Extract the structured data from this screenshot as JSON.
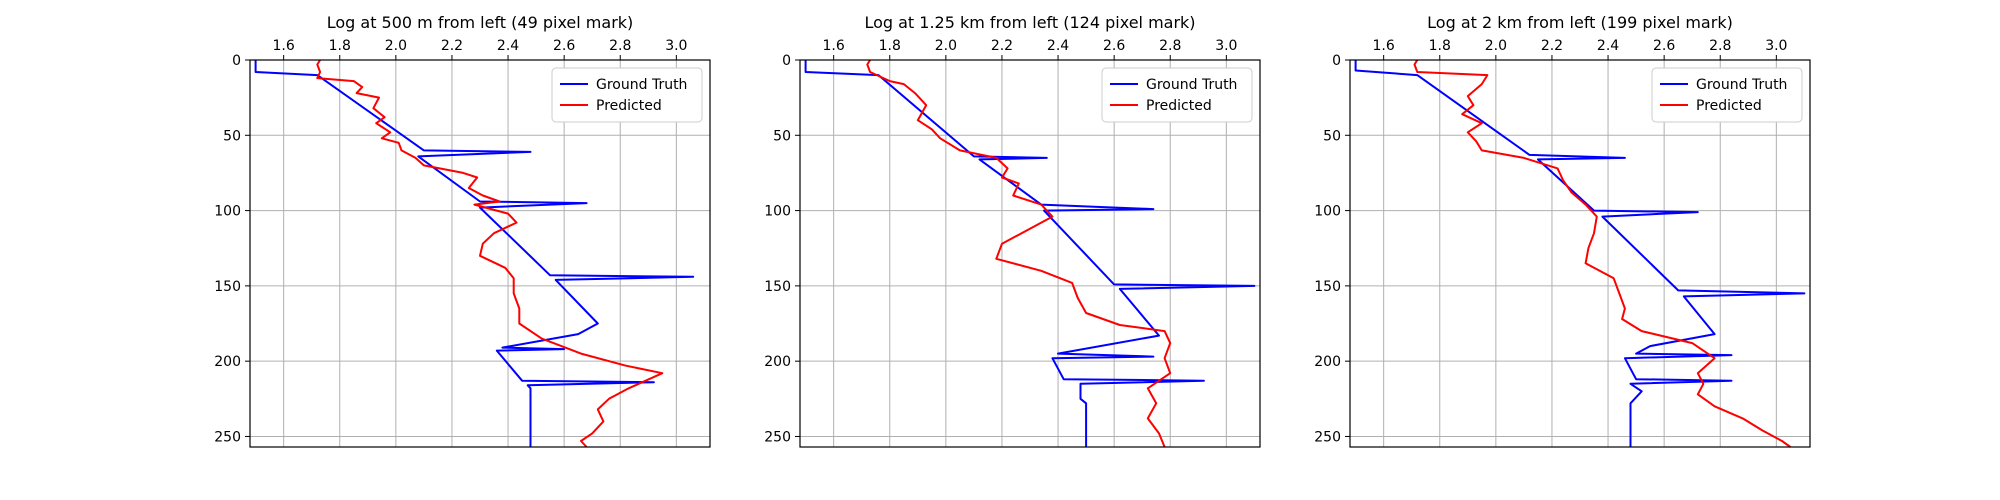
{
  "colors": {
    "ground_truth": "#0000ff",
    "predicted": "#ff0000",
    "grid": "#b0b0b0"
  },
  "chart_data": [
    {
      "type": "line",
      "title": "Log at 500 m from left (49 pixel mark)",
      "xlim": [
        1.48,
        3.12
      ],
      "ylim": [
        257,
        0
      ],
      "y_inverted": true,
      "x_axis_position": "top",
      "xticks": [
        1.6,
        1.8,
        2.0,
        2.2,
        2.4,
        2.6,
        2.8,
        3.0
      ],
      "yticks": [
        0,
        50,
        100,
        150,
        200,
        250
      ],
      "grid": true,
      "legend": "top-right",
      "series": [
        {
          "name": "Ground Truth",
          "color": "#0000ff",
          "points": [
            [
              1.5,
              0
            ],
            [
              1.5,
              8
            ],
            [
              1.72,
              10
            ],
            [
              2.1,
              60
            ],
            [
              2.48,
              61
            ],
            [
              2.08,
              64
            ],
            [
              2.3,
              94
            ],
            [
              2.68,
              95
            ],
            [
              2.3,
              98
            ],
            [
              2.55,
              143
            ],
            [
              3.06,
              144
            ],
            [
              2.57,
              146
            ],
            [
              2.72,
              175
            ],
            [
              2.65,
              182
            ],
            [
              2.38,
              191
            ],
            [
              2.6,
              192
            ],
            [
              2.36,
              193
            ],
            [
              2.45,
              213
            ],
            [
              2.92,
              214
            ],
            [
              2.47,
              216
            ],
            [
              2.48,
              218
            ],
            [
              2.48,
              257
            ]
          ]
        },
        {
          "name": "Predicted",
          "color": "#ff0000",
          "points": [
            [
              1.73,
              0
            ],
            [
              1.72,
              3
            ],
            [
              1.73,
              8
            ],
            [
              1.72,
              12
            ],
            [
              1.85,
              14
            ],
            [
              1.88,
              18
            ],
            [
              1.86,
              22
            ],
            [
              1.94,
              25
            ],
            [
              1.92,
              32
            ],
            [
              1.96,
              38
            ],
            [
              1.93,
              42
            ],
            [
              1.98,
              48
            ],
            [
              1.95,
              52
            ],
            [
              2.01,
              55
            ],
            [
              2.02,
              60
            ],
            [
              2.07,
              65
            ],
            [
              2.1,
              70
            ],
            [
              2.24,
              75
            ],
            [
              2.29,
              78
            ],
            [
              2.26,
              85
            ],
            [
              2.31,
              90
            ],
            [
              2.37,
              94
            ],
            [
              2.28,
              96
            ],
            [
              2.4,
              102
            ],
            [
              2.43,
              108
            ],
            [
              2.35,
              115
            ],
            [
              2.31,
              122
            ],
            [
              2.3,
              130
            ],
            [
              2.39,
              138
            ],
            [
              2.42,
              145
            ],
            [
              2.42,
              155
            ],
            [
              2.44,
              165
            ],
            [
              2.44,
              175
            ],
            [
              2.52,
              185
            ],
            [
              2.66,
              195
            ],
            [
              2.82,
              203
            ],
            [
              2.95,
              208
            ],
            [
              2.83,
              218
            ],
            [
              2.76,
              225
            ],
            [
              2.72,
              232
            ],
            [
              2.74,
              240
            ],
            [
              2.7,
              248
            ],
            [
              2.66,
              253
            ],
            [
              2.68,
              257
            ]
          ]
        }
      ]
    },
    {
      "type": "line",
      "title": "Log at 1.25 km from left (124 pixel mark)",
      "xlim": [
        1.48,
        3.12
      ],
      "ylim": [
        257,
        0
      ],
      "y_inverted": true,
      "x_axis_position": "top",
      "xticks": [
        1.6,
        1.8,
        2.0,
        2.2,
        2.4,
        2.6,
        2.8,
        3.0
      ],
      "yticks": [
        0,
        50,
        100,
        150,
        200,
        250
      ],
      "grid": true,
      "legend": "top-right",
      "series": [
        {
          "name": "Ground Truth",
          "color": "#0000ff",
          "points": [
            [
              1.5,
              0
            ],
            [
              1.5,
              8
            ],
            [
              1.76,
              10
            ],
            [
              2.1,
              64
            ],
            [
              2.36,
              65
            ],
            [
              2.12,
              66
            ],
            [
              2.34,
              96
            ],
            [
              2.74,
              99
            ],
            [
              2.35,
              100
            ],
            [
              2.6,
              149
            ],
            [
              3.1,
              150
            ],
            [
              2.62,
              152
            ],
            [
              2.76,
              183
            ],
            [
              2.4,
              195
            ],
            [
              2.74,
              197
            ],
            [
              2.38,
              198
            ],
            [
              2.42,
              212
            ],
            [
              2.92,
              213
            ],
            [
              2.48,
              215
            ],
            [
              2.48,
              225
            ],
            [
              2.5,
              228
            ],
            [
              2.5,
              257
            ]
          ]
        },
        {
          "name": "Predicted",
          "color": "#ff0000",
          "points": [
            [
              1.73,
              0
            ],
            [
              1.72,
              3
            ],
            [
              1.73,
              8
            ],
            [
              1.8,
              14
            ],
            [
              1.85,
              16
            ],
            [
              1.89,
              22
            ],
            [
              1.93,
              30
            ],
            [
              1.9,
              40
            ],
            [
              1.95,
              46
            ],
            [
              1.98,
              52
            ],
            [
              2.05,
              60
            ],
            [
              2.18,
              65
            ],
            [
              2.22,
              72
            ],
            [
              2.2,
              78
            ],
            [
              2.26,
              82
            ],
            [
              2.24,
              90
            ],
            [
              2.34,
              96
            ],
            [
              2.38,
              104
            ],
            [
              2.27,
              115
            ],
            [
              2.2,
              122
            ],
            [
              2.18,
              132
            ],
            [
              2.34,
              140
            ],
            [
              2.45,
              148
            ],
            [
              2.47,
              158
            ],
            [
              2.5,
              168
            ],
            [
              2.62,
              176
            ],
            [
              2.78,
              180
            ],
            [
              2.8,
              188
            ],
            [
              2.78,
              198
            ],
            [
              2.8,
              208
            ],
            [
              2.72,
              218
            ],
            [
              2.75,
              228
            ],
            [
              2.72,
              238
            ],
            [
              2.76,
              248
            ],
            [
              2.78,
              257
            ]
          ]
        }
      ]
    },
    {
      "type": "line",
      "title": "Log at 2 km from left (199 pixel mark)",
      "xlim": [
        1.48,
        3.12
      ],
      "ylim": [
        257,
        0
      ],
      "y_inverted": true,
      "x_axis_position": "top",
      "xticks": [
        1.6,
        1.8,
        2.0,
        2.2,
        2.4,
        2.6,
        2.8,
        3.0
      ],
      "yticks": [
        0,
        50,
        100,
        150,
        200,
        250
      ],
      "grid": true,
      "legend": "top-right",
      "series": [
        {
          "name": "Ground Truth",
          "color": "#0000ff",
          "points": [
            [
              1.5,
              0
            ],
            [
              1.5,
              7
            ],
            [
              1.72,
              10
            ],
            [
              2.12,
              63
            ],
            [
              2.46,
              65
            ],
            [
              2.15,
              66
            ],
            [
              2.35,
              100
            ],
            [
              2.72,
              101
            ],
            [
              2.38,
              104
            ],
            [
              2.65,
              153
            ],
            [
              3.1,
              155
            ],
            [
              2.67,
              157
            ],
            [
              2.78,
              182
            ],
            [
              2.55,
              190
            ],
            [
              2.5,
              195
            ],
            [
              2.84,
              196
            ],
            [
              2.46,
              198
            ],
            [
              2.5,
              212
            ],
            [
              2.84,
              213
            ],
            [
              2.48,
              215
            ],
            [
              2.52,
              220
            ],
            [
              2.48,
              228
            ],
            [
              2.48,
              257
            ]
          ]
        },
        {
          "name": "Predicted",
          "color": "#ff0000",
          "points": [
            [
              1.72,
              0
            ],
            [
              1.71,
              3
            ],
            [
              1.72,
              8
            ],
            [
              1.97,
              10
            ],
            [
              1.95,
              16
            ],
            [
              1.9,
              24
            ],
            [
              1.92,
              30
            ],
            [
              1.88,
              36
            ],
            [
              1.95,
              42
            ],
            [
              1.9,
              48
            ],
            [
              1.93,
              54
            ],
            [
              1.95,
              60
            ],
            [
              2.1,
              65
            ],
            [
              2.22,
              72
            ],
            [
              2.24,
              80
            ],
            [
              2.27,
              88
            ],
            [
              2.32,
              96
            ],
            [
              2.36,
              104
            ],
            [
              2.35,
              115
            ],
            [
              2.33,
              125
            ],
            [
              2.32,
              135
            ],
            [
              2.42,
              145
            ],
            [
              2.44,
              155
            ],
            [
              2.46,
              165
            ],
            [
              2.45,
              172
            ],
            [
              2.52,
              180
            ],
            [
              2.7,
              188
            ],
            [
              2.78,
              198
            ],
            [
              2.72,
              208
            ],
            [
              2.74,
              215
            ],
            [
              2.72,
              222
            ],
            [
              2.78,
              230
            ],
            [
              2.88,
              238
            ],
            [
              2.95,
              246
            ],
            [
              3.02,
              253
            ],
            [
              3.05,
              257
            ]
          ]
        }
      ]
    }
  ]
}
